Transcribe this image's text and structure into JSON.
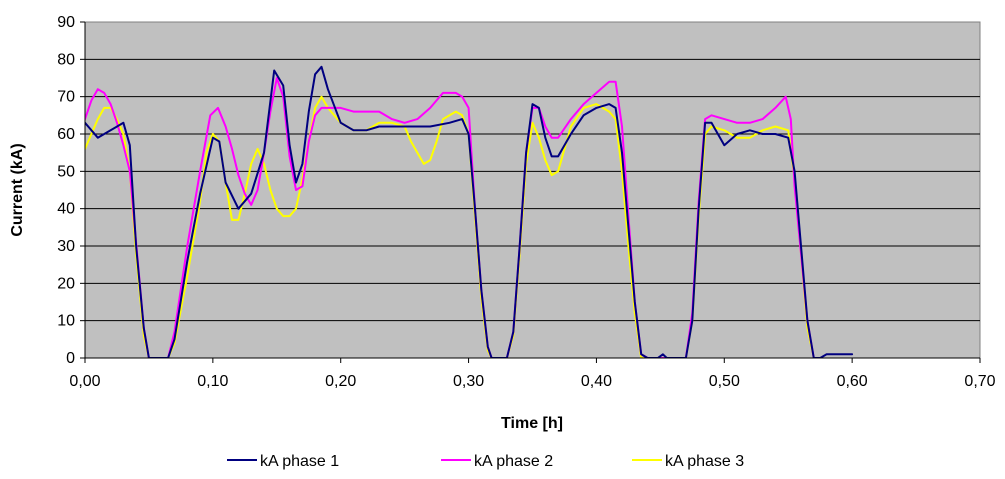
{
  "chart_data": {
    "type": "line",
    "title": "",
    "xlabel": "Time [h]",
    "ylabel": "Current (kA)",
    "xlim": [
      0,
      0.7
    ],
    "ylim": [
      0,
      90
    ],
    "x_ticks": [
      "0,00",
      "0,10",
      "0,20",
      "0,30",
      "0,40",
      "0,50",
      "0,60",
      "0,70"
    ],
    "y_ticks": [
      "0",
      "10",
      "20",
      "30",
      "40",
      "50",
      "60",
      "70",
      "80",
      "90"
    ],
    "grid": "horizontal",
    "plot_background": "gray",
    "legend_position": "bottom",
    "series": [
      {
        "name": "kA phase 1",
        "color": "#000080",
        "points": [
          [
            0,
            63
          ],
          [
            0.01,
            59
          ],
          [
            0.02,
            61
          ],
          [
            0.03,
            63
          ],
          [
            0.035,
            57
          ],
          [
            0.04,
            30
          ],
          [
            0.046,
            8
          ],
          [
            0.05,
            0
          ],
          [
            0.065,
            0
          ],
          [
            0.07,
            5
          ],
          [
            0.08,
            26
          ],
          [
            0.09,
            44
          ],
          [
            0.1,
            59
          ],
          [
            0.105,
            58
          ],
          [
            0.11,
            47
          ],
          [
            0.12,
            40
          ],
          [
            0.13,
            44
          ],
          [
            0.14,
            55
          ],
          [
            0.148,
            77
          ],
          [
            0.155,
            73
          ],
          [
            0.16,
            57
          ],
          [
            0.165,
            47
          ],
          [
            0.17,
            52
          ],
          [
            0.175,
            66
          ],
          [
            0.18,
            76
          ],
          [
            0.185,
            78
          ],
          [
            0.19,
            72
          ],
          [
            0.2,
            63
          ],
          [
            0.21,
            61
          ],
          [
            0.22,
            61
          ],
          [
            0.23,
            62
          ],
          [
            0.25,
            62
          ],
          [
            0.27,
            62
          ],
          [
            0.285,
            63
          ],
          [
            0.295,
            64
          ],
          [
            0.3,
            60
          ],
          [
            0.305,
            40
          ],
          [
            0.31,
            18
          ],
          [
            0.315,
            3
          ],
          [
            0.318,
            0
          ],
          [
            0.33,
            0
          ],
          [
            0.335,
            7
          ],
          [
            0.34,
            30
          ],
          [
            0.345,
            55
          ],
          [
            0.35,
            68
          ],
          [
            0.355,
            67
          ],
          [
            0.36,
            59
          ],
          [
            0.365,
            54
          ],
          [
            0.37,
            54
          ],
          [
            0.38,
            60
          ],
          [
            0.39,
            65
          ],
          [
            0.4,
            67
          ],
          [
            0.41,
            68
          ],
          [
            0.415,
            67
          ],
          [
            0.42,
            55
          ],
          [
            0.425,
            35
          ],
          [
            0.43,
            15
          ],
          [
            0.435,
            1
          ],
          [
            0.44,
            0
          ],
          [
            0.448,
            0
          ],
          [
            0.452,
            1
          ],
          [
            0.455,
            0
          ],
          [
            0.47,
            0
          ],
          [
            0.475,
            10
          ],
          [
            0.48,
            40
          ],
          [
            0.485,
            63
          ],
          [
            0.49,
            63
          ],
          [
            0.5,
            57
          ],
          [
            0.51,
            60
          ],
          [
            0.52,
            61
          ],
          [
            0.53,
            60
          ],
          [
            0.54,
            60
          ],
          [
            0.55,
            59
          ],
          [
            0.555,
            50
          ],
          [
            0.56,
            30
          ],
          [
            0.565,
            10
          ],
          [
            0.57,
            0
          ],
          [
            0.575,
            0
          ],
          [
            0.58,
            1
          ],
          [
            0.59,
            1
          ],
          [
            0.6,
            1
          ]
        ]
      },
      {
        "name": "kA phase 2",
        "color": "#ff00ff",
        "points": [
          [
            0,
            64
          ],
          [
            0.005,
            69
          ],
          [
            0.01,
            72
          ],
          [
            0.015,
            71
          ],
          [
            0.02,
            68
          ],
          [
            0.025,
            63
          ],
          [
            0.03,
            57
          ],
          [
            0.035,
            50
          ],
          [
            0.04,
            31
          ],
          [
            0.046,
            8
          ],
          [
            0.05,
            0
          ],
          [
            0.065,
            0
          ],
          [
            0.07,
            7
          ],
          [
            0.08,
            30
          ],
          [
            0.09,
            50
          ],
          [
            0.098,
            65
          ],
          [
            0.104,
            67
          ],
          [
            0.11,
            62
          ],
          [
            0.115,
            56
          ],
          [
            0.12,
            49
          ],
          [
            0.125,
            44
          ],
          [
            0.13,
            41
          ],
          [
            0.135,
            45
          ],
          [
            0.14,
            55
          ],
          [
            0.145,
            66
          ],
          [
            0.15,
            75
          ],
          [
            0.155,
            70
          ],
          [
            0.16,
            54
          ],
          [
            0.165,
            45
          ],
          [
            0.17,
            46
          ],
          [
            0.175,
            58
          ],
          [
            0.18,
            65
          ],
          [
            0.185,
            67
          ],
          [
            0.19,
            67
          ],
          [
            0.2,
            67
          ],
          [
            0.21,
            66
          ],
          [
            0.22,
            66
          ],
          [
            0.23,
            66
          ],
          [
            0.24,
            64
          ],
          [
            0.25,
            63
          ],
          [
            0.26,
            64
          ],
          [
            0.27,
            67
          ],
          [
            0.28,
            71
          ],
          [
            0.29,
            71
          ],
          [
            0.295,
            70
          ],
          [
            0.3,
            67
          ],
          [
            0.305,
            40
          ],
          [
            0.31,
            18
          ],
          [
            0.315,
            3
          ],
          [
            0.318,
            0
          ],
          [
            0.33,
            0
          ],
          [
            0.335,
            7
          ],
          [
            0.34,
            30
          ],
          [
            0.345,
            55
          ],
          [
            0.35,
            67
          ],
          [
            0.355,
            67
          ],
          [
            0.36,
            62
          ],
          [
            0.365,
            59
          ],
          [
            0.37,
            59
          ],
          [
            0.38,
            64
          ],
          [
            0.39,
            68
          ],
          [
            0.4,
            71
          ],
          [
            0.41,
            74
          ],
          [
            0.415,
            74
          ],
          [
            0.42,
            62
          ],
          [
            0.425,
            38
          ],
          [
            0.43,
            15
          ],
          [
            0.435,
            1
          ],
          [
            0.44,
            0
          ],
          [
            0.47,
            0
          ],
          [
            0.475,
            12
          ],
          [
            0.48,
            42
          ],
          [
            0.485,
            64
          ],
          [
            0.49,
            65
          ],
          [
            0.5,
            64
          ],
          [
            0.51,
            63
          ],
          [
            0.52,
            63
          ],
          [
            0.53,
            64
          ],
          [
            0.54,
            67
          ],
          [
            0.548,
            70
          ],
          [
            0.552,
            64
          ],
          [
            0.555,
            46
          ],
          [
            0.56,
            28
          ],
          [
            0.565,
            10
          ],
          [
            0.57,
            0
          ],
          [
            0.575,
            0
          ]
        ]
      },
      {
        "name": "kA phase 3",
        "color": "#ffff00",
        "points": [
          [
            0,
            56
          ],
          [
            0.005,
            60
          ],
          [
            0.01,
            64
          ],
          [
            0.015,
            67
          ],
          [
            0.02,
            67
          ],
          [
            0.025,
            64
          ],
          [
            0.03,
            60
          ],
          [
            0.035,
            50
          ],
          [
            0.04,
            28
          ],
          [
            0.046,
            6
          ],
          [
            0.05,
            0
          ],
          [
            0.065,
            0
          ],
          [
            0.07,
            4
          ],
          [
            0.08,
            22
          ],
          [
            0.09,
            42
          ],
          [
            0.095,
            55
          ],
          [
            0.1,
            60
          ],
          [
            0.105,
            58
          ],
          [
            0.11,
            47
          ],
          [
            0.115,
            37
          ],
          [
            0.12,
            37
          ],
          [
            0.125,
            44
          ],
          [
            0.13,
            52
          ],
          [
            0.135,
            56
          ],
          [
            0.14,
            52
          ],
          [
            0.145,
            45
          ],
          [
            0.15,
            40
          ],
          [
            0.155,
            38
          ],
          [
            0.16,
            38
          ],
          [
            0.165,
            40
          ],
          [
            0.17,
            48
          ],
          [
            0.175,
            58
          ],
          [
            0.18,
            67
          ],
          [
            0.185,
            70
          ],
          [
            0.19,
            67
          ],
          [
            0.2,
            63
          ],
          [
            0.21,
            61
          ],
          [
            0.22,
            61
          ],
          [
            0.23,
            63
          ],
          [
            0.24,
            63
          ],
          [
            0.25,
            62
          ],
          [
            0.255,
            58
          ],
          [
            0.26,
            55
          ],
          [
            0.265,
            52
          ],
          [
            0.27,
            53
          ],
          [
            0.275,
            58
          ],
          [
            0.28,
            64
          ],
          [
            0.29,
            66
          ],
          [
            0.295,
            65
          ],
          [
            0.3,
            60
          ],
          [
            0.305,
            38
          ],
          [
            0.31,
            16
          ],
          [
            0.315,
            2
          ],
          [
            0.318,
            0
          ],
          [
            0.33,
            0
          ],
          [
            0.335,
            6
          ],
          [
            0.34,
            28
          ],
          [
            0.345,
            52
          ],
          [
            0.35,
            63
          ],
          [
            0.355,
            59
          ],
          [
            0.36,
            53
          ],
          [
            0.365,
            49
          ],
          [
            0.37,
            50
          ],
          [
            0.38,
            62
          ],
          [
            0.39,
            67
          ],
          [
            0.4,
            68
          ],
          [
            0.41,
            66
          ],
          [
            0.415,
            64
          ],
          [
            0.42,
            50
          ],
          [
            0.425,
            30
          ],
          [
            0.43,
            12
          ],
          [
            0.435,
            0
          ],
          [
            0.44,
            0
          ],
          [
            0.47,
            0
          ],
          [
            0.475,
            10
          ],
          [
            0.48,
            38
          ],
          [
            0.485,
            60
          ],
          [
            0.49,
            62
          ],
          [
            0.5,
            61
          ],
          [
            0.51,
            59
          ],
          [
            0.52,
            59
          ],
          [
            0.53,
            61
          ],
          [
            0.54,
            62
          ],
          [
            0.55,
            61
          ],
          [
            0.555,
            48
          ],
          [
            0.56,
            28
          ],
          [
            0.565,
            8
          ],
          [
            0.57,
            0
          ]
        ]
      }
    ]
  }
}
